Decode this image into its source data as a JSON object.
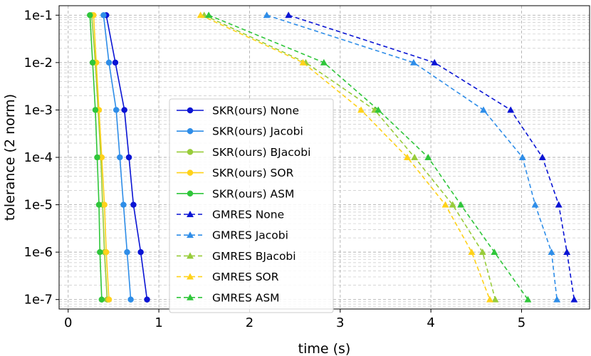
{
  "chart_data": {
    "type": "line",
    "title": "",
    "xlabel": "time (s)",
    "ylabel": "tolerance (2 norm)",
    "xlim": [
      -0.1,
      5.75
    ],
    "xticks": [
      0,
      1,
      2,
      3,
      4,
      5
    ],
    "ylim": [
      -7.2,
      -0.8
    ],
    "y": [
      -1,
      -2,
      -3,
      -4,
      -5,
      -6,
      -7
    ],
    "ytick_labels": [
      "1e-1",
      "1e-2",
      "1e-3",
      "1e-4",
      "1e-5",
      "1e-6",
      "1e-7"
    ],
    "grid": true,
    "legend_position": "center-left",
    "series": [
      {
        "name": "SKR(ours) None",
        "color": "#0a14d4",
        "style": "solid",
        "marker": "circle",
        "x": [
          0.42,
          0.52,
          0.62,
          0.67,
          0.72,
          0.8,
          0.87
        ]
      },
      {
        "name": "SKR(ours) Jacobi",
        "color": "#2e8de8",
        "style": "solid",
        "marker": "circle",
        "x": [
          0.39,
          0.45,
          0.53,
          0.57,
          0.61,
          0.65,
          0.69
        ]
      },
      {
        "name": "SKR(ours) BJacobi",
        "color": "#98cc3a",
        "style": "solid",
        "marker": "circle",
        "x": [
          0.26,
          0.3,
          0.33,
          0.36,
          0.38,
          0.4,
          0.43
        ]
      },
      {
        "name": "SKR(ours) SOR",
        "color": "#ffd21a",
        "style": "solid",
        "marker": "circle",
        "x": [
          0.28,
          0.31,
          0.34,
          0.37,
          0.4,
          0.42,
          0.45
        ]
      },
      {
        "name": "SKR(ours) ASM",
        "color": "#2fc63a",
        "style": "solid",
        "marker": "circle",
        "x": [
          0.24,
          0.27,
          0.3,
          0.32,
          0.34,
          0.35,
          0.37
        ]
      },
      {
        "name": "GMRES None",
        "color": "#0a14d4",
        "style": "dashed",
        "marker": "triangle",
        "x": [
          2.43,
          4.04,
          4.88,
          5.23,
          5.41,
          5.5,
          5.58
        ]
      },
      {
        "name": "GMRES Jacobi",
        "color": "#2e8de8",
        "style": "dashed",
        "marker": "triangle",
        "x": [
          2.19,
          3.81,
          4.58,
          5.01,
          5.15,
          5.33,
          5.39
        ]
      },
      {
        "name": "GMRES BJacobi",
        "color": "#98cc3a",
        "style": "dashed",
        "marker": "triangle",
        "x": [
          1.5,
          2.62,
          3.38,
          3.82,
          4.24,
          4.57,
          4.71
        ]
      },
      {
        "name": "GMRES SOR",
        "color": "#ffd21a",
        "style": "dashed",
        "marker": "triangle",
        "x": [
          1.46,
          2.59,
          3.23,
          3.74,
          4.16,
          4.45,
          4.65
        ]
      },
      {
        "name": "GMRES ASM",
        "color": "#2fc63a",
        "style": "dashed",
        "marker": "triangle",
        "x": [
          1.55,
          2.82,
          3.42,
          3.97,
          4.33,
          4.7,
          5.07
        ]
      }
    ]
  }
}
